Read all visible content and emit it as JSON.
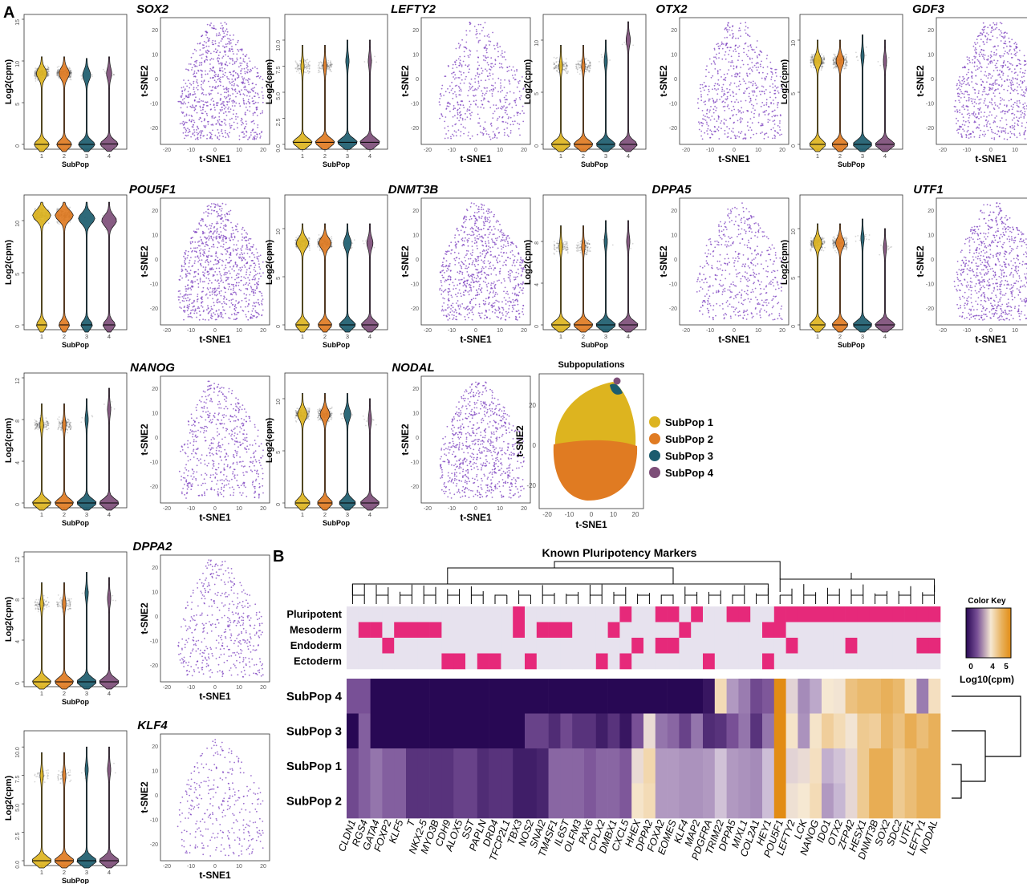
{
  "panel_letters": {
    "a": "A",
    "b": "B"
  },
  "chart_data": [
    {
      "type": "violin+scatter",
      "panel": "A",
      "genes": [
        {
          "name": "SOX2",
          "ylim": [
            0,
            15
          ],
          "yticks": [
            0,
            5,
            10,
            15
          ],
          "yticklabels": [
            "0",
            "5",
            "10",
            "15"
          ],
          "zero": [
            0,
            0,
            0,
            0.05
          ],
          "high": [
            8.5,
            8.5,
            8.3,
            8.5
          ],
          "zeroFrac": [
            0.45,
            0.45,
            0.6,
            0.75
          ],
          "dots": 0.9
        },
        {
          "name": "LEFTY2",
          "ylim": [
            0,
            12
          ],
          "yticks": [
            0,
            2.5,
            5,
            7.5,
            10
          ],
          "yticklabels": [
            "0.0",
            "2.5",
            "5.0",
            "7.5",
            "10.0"
          ],
          "zero": [
            0.2,
            0.2,
            0.2,
            0.2
          ],
          "high": [
            7.5,
            7.5,
            8,
            8
          ],
          "zeroFrac": [
            0.92,
            0.92,
            0.97,
            0.97
          ],
          "dots": 0.4
        },
        {
          "name": "OTX2",
          "ylim": [
            0,
            12
          ],
          "yticks": [
            0,
            5,
            10
          ],
          "yticklabels": [
            "0",
            "5",
            "10"
          ],
          "zero": [
            0,
            0,
            0,
            0
          ],
          "high": [
            7.5,
            7.5,
            8,
            10
          ],
          "zeroFrac": [
            0.9,
            0.9,
            0.9,
            0.8
          ],
          "dots": 0.5
        },
        {
          "name": "GDF3",
          "ylim": [
            0,
            12
          ],
          "yticks": [
            0,
            5,
            10
          ],
          "yticklabels": [
            "0",
            "5",
            "10"
          ],
          "zero": [
            0,
            0,
            0,
            0
          ],
          "high": [
            8,
            8,
            8.5,
            8
          ],
          "zeroFrac": [
            0.6,
            0.6,
            0.9,
            0.95
          ],
          "dots": 0.8
        },
        {
          "name": "POU5F1",
          "ylim": [
            0,
            12
          ],
          "yticks": [
            0,
            5,
            10
          ],
          "yticklabels": [
            "0",
            "5",
            "10"
          ],
          "zero": [
            0,
            0,
            0,
            0
          ],
          "high": [
            10.5,
            10.5,
            10.2,
            10
          ],
          "zeroFrac": [
            0.02,
            0.02,
            0.12,
            0.2
          ],
          "dots": 1.0
        },
        {
          "name": "DNMT3B",
          "ylim": [
            0,
            13
          ],
          "yticks": [
            0,
            5,
            10
          ],
          "yticklabels": [
            "0",
            "5",
            "10"
          ],
          "zero": [
            0,
            0,
            0,
            0
          ],
          "high": [
            8.5,
            8.5,
            8.5,
            8.5
          ],
          "zeroFrac": [
            0.35,
            0.35,
            0.6,
            0.7
          ],
          "dots": 0.9
        },
        {
          "name": "DPPA5",
          "ylim": [
            0,
            12
          ],
          "yticks": [
            0,
            4,
            8
          ],
          "yticklabels": [
            "0",
            "4",
            "8"
          ],
          "zero": [
            0,
            0,
            0,
            0
          ],
          "high": [
            7.5,
            7.5,
            8,
            8
          ],
          "zeroFrac": [
            0.9,
            0.9,
            0.97,
            0.97
          ],
          "dots": 0.4
        },
        {
          "name": "UTF1",
          "ylim": [
            0,
            13
          ],
          "yticks": [
            0,
            5,
            10
          ],
          "yticklabels": [
            "0",
            "5",
            "10"
          ],
          "zero": [
            0,
            0,
            0,
            0
          ],
          "high": [
            8.5,
            8.5,
            9,
            8
          ],
          "zeroFrac": [
            0.55,
            0.55,
            0.9,
            0.97
          ],
          "dots": 0.85
        },
        {
          "name": "NANOG",
          "ylim": [
            0,
            12
          ],
          "yticks": [
            0,
            4,
            8,
            12
          ],
          "yticklabels": [
            "0",
            "4",
            "8",
            "12"
          ],
          "zero": [
            0,
            0,
            0,
            0
          ],
          "high": [
            7.5,
            7.5,
            8,
            9
          ],
          "zeroFrac": [
            0.85,
            0.85,
            0.95,
            0.95
          ],
          "dots": 0.5
        },
        {
          "name": "NODAL",
          "ylim": [
            0,
            12
          ],
          "yticks": [
            0,
            5,
            10
          ],
          "yticklabels": [
            "0",
            "5",
            "10"
          ],
          "zero": [
            0,
            0,
            0,
            0
          ],
          "high": [
            8.5,
            8.5,
            8.5,
            8
          ],
          "zeroFrac": [
            0.5,
            0.5,
            0.65,
            0.9
          ],
          "dots": 0.8
        },
        {
          "name": "DPPA2",
          "ylim": [
            0,
            12
          ],
          "yticks": [
            0,
            4,
            8,
            12
          ],
          "yticklabels": [
            "0",
            "4",
            "8",
            "12"
          ],
          "zero": [
            0,
            0,
            0,
            0
          ],
          "high": [
            7.5,
            7.5,
            8.5,
            8
          ],
          "zeroFrac": [
            0.85,
            0.85,
            0.95,
            0.97
          ],
          "dots": 0.35
        },
        {
          "name": "KLF4",
          "ylim": [
            0,
            11
          ],
          "yticks": [
            0,
            2.5,
            5,
            7.5,
            10
          ],
          "yticklabels": [
            "0.0",
            "2.5",
            "5.0",
            "7.5",
            "10.0"
          ],
          "zero": [
            0,
            0,
            0,
            0
          ],
          "high": [
            7.5,
            7.5,
            8,
            8
          ],
          "zeroFrac": [
            0.95,
            0.95,
            0.98,
            0.98
          ],
          "dots": 0.15
        }
      ],
      "violin_xlabel": "SubPop",
      "violin_ylabel": "Log2(cpm)",
      "violin_categories": [
        "1",
        "2",
        "3",
        "4"
      ],
      "tsne_xlabel": "t-SNE1",
      "tsne_ylabel": "t-SNE2",
      "tsne_xticks": [
        "-20",
        "-10",
        "0",
        "10",
        "20"
      ],
      "tsne_yticks": [
        "20",
        "10",
        "0",
        "-10",
        "-20"
      ]
    },
    {
      "type": "scatter",
      "title": "Subpopulations",
      "xlabel": "t-SNE1",
      "ylabel": "t-SNE2",
      "xticks": [
        "-20",
        "-10",
        "0",
        "10",
        "20"
      ],
      "yticks": [
        "20",
        "0",
        "-20"
      ],
      "legend": [
        "SubPop 1",
        "SubPop 2",
        "SubPop 3",
        "SubPop 4"
      ],
      "colors": [
        "#DDB41F",
        "#E07B22",
        "#1C5C6E",
        "#7D4E78"
      ]
    },
    {
      "type": "heatmap",
      "panel": "B",
      "title": "Known Pluripotency Markers",
      "genes": [
        "CLDN1",
        "RGS4",
        "GATA4",
        "FOXP2",
        "KLF5",
        "T",
        "NKX2-5",
        "MYO3B",
        "CDH9",
        "ALOX5",
        "SST",
        "PAPLN",
        "DRD4",
        "TFCP2L1",
        "TBX3",
        "NOS2",
        "SNAI2",
        "TM4SF1",
        "IL6ST",
        "OLFM3",
        "PAX6",
        "CPLX2",
        "DMBX1",
        "CXCL5",
        "HHEX",
        "DPPA2",
        "FOXA2",
        "EOMES",
        "KLF4",
        "MAP2",
        "PDGFRA",
        "TRIM22",
        "DPPA5",
        "MIXL1",
        "COL2A1",
        "HEY1",
        "POU5F1",
        "LEFTY2",
        "LCK",
        "NANOG",
        "IDO1",
        "OTX2",
        "ZFP42",
        "HESX1",
        "DNMT3B",
        "SOX2",
        "SDC2",
        "UTF1",
        "LEFTY1",
        "NODAL"
      ],
      "annotation_rows": [
        "Pluripotent",
        "Mesoderm",
        "Endoderm",
        "Ectoderm"
      ],
      "annotation": {
        "Pluripotent": [
          0,
          0,
          0,
          0,
          0,
          0,
          0,
          0,
          0,
          0,
          0,
          0,
          0,
          0,
          1,
          0,
          0,
          0,
          0,
          0,
          0,
          0,
          0,
          1,
          0,
          0,
          1,
          1,
          0,
          1,
          0,
          0,
          1,
          1,
          0,
          0,
          1,
          1,
          1,
          1,
          1,
          1,
          1,
          1,
          1,
          1,
          1,
          1,
          1,
          1
        ],
        "Mesoderm": [
          0,
          1,
          1,
          0,
          1,
          1,
          1,
          1,
          0,
          0,
          0,
          0,
          0,
          0,
          1,
          0,
          1,
          1,
          1,
          0,
          0,
          0,
          1,
          0,
          0,
          0,
          0,
          0,
          1,
          0,
          0,
          0,
          0,
          0,
          0,
          1,
          1,
          0,
          0,
          0,
          0,
          0,
          0,
          0,
          0,
          0,
          0,
          0,
          0,
          0
        ],
        "Endoderm": [
          0,
          0,
          0,
          1,
          0,
          0,
          0,
          0,
          0,
          0,
          0,
          0,
          0,
          0,
          0,
          0,
          0,
          0,
          0,
          0,
          0,
          0,
          0,
          0,
          1,
          0,
          1,
          1,
          0,
          0,
          0,
          0,
          0,
          0,
          0,
          0,
          0,
          1,
          0,
          0,
          0,
          0,
          1,
          0,
          0,
          0,
          0,
          0,
          1,
          1
        ],
        "Ectoderm": [
          0,
          0,
          0,
          0,
          0,
          0,
          0,
          0,
          1,
          1,
          0,
          1,
          1,
          0,
          0,
          1,
          0,
          0,
          0,
          0,
          0,
          1,
          0,
          1,
          0,
          0,
          0,
          0,
          0,
          0,
          1,
          0,
          0,
          0,
          0,
          1,
          0,
          0,
          0,
          0,
          0,
          0,
          0,
          0,
          0,
          0,
          0,
          0,
          0,
          0
        ]
      },
      "rows": [
        "SubPop 4",
        "SubPop 3",
        "SubPop 1",
        "SubPop 2"
      ],
      "values_log10cpm": [
        [
          1.0,
          1.0,
          0,
          0,
          0,
          0,
          0,
          0,
          0,
          0,
          0,
          0,
          0,
          0,
          0,
          0,
          0,
          0,
          0,
          0,
          0,
          0,
          0,
          0,
          0,
          0,
          0,
          0,
          0,
          0,
          0.2,
          3.8,
          2.0,
          1.6,
          0.9,
          1.1,
          6.0,
          3.0,
          1.8,
          2.2,
          3.5,
          3.4,
          4.4,
          4.6,
          4.6,
          4.8,
          4.6,
          3.6,
          1.6,
          3.7
        ],
        [
          0,
          1.2,
          0,
          0,
          0,
          0,
          0,
          0,
          0,
          0,
          0,
          0,
          0,
          0,
          0,
          0.8,
          0.8,
          0.5,
          0.9,
          0.6,
          0.6,
          0.3,
          0.6,
          0.2,
          1.0,
          3.2,
          1.5,
          1.3,
          0.8,
          1.5,
          0.5,
          0.6,
          1.0,
          1.5,
          0.6,
          1.5,
          6.0,
          3.6,
          1.9,
          3.6,
          4.1,
          3.8,
          3.4,
          4.2,
          4.1,
          4.7,
          4.4,
          4.9,
          4.5,
          4.8
        ],
        [
          0.9,
          1.2,
          1.5,
          1.2,
          1.2,
          0.6,
          0.6,
          0.6,
          0.6,
          0.8,
          0.8,
          0.5,
          0.6,
          0.6,
          0.3,
          0.3,
          0.4,
          1.3,
          1.3,
          1.3,
          1.1,
          1.3,
          1.3,
          1.1,
          3.2,
          3.9,
          2.0,
          2.0,
          1.9,
          1.9,
          2.0,
          2.6,
          2.0,
          1.9,
          1.8,
          2.5,
          6.0,
          3.0,
          3.2,
          3.7,
          2.3,
          2.6,
          3.1,
          4.2,
          4.9,
          4.9,
          4.2,
          4.5,
          4.8,
          4.8
        ],
        [
          0.9,
          1.2,
          1.5,
          1.2,
          1.2,
          0.6,
          0.6,
          0.6,
          0.6,
          0.8,
          0.8,
          0.5,
          0.6,
          0.6,
          0.3,
          0.3,
          0.4,
          1.3,
          1.3,
          1.3,
          1.1,
          1.3,
          1.3,
          1.1,
          3.6,
          3.8,
          2.0,
          2.0,
          1.9,
          1.9,
          2.0,
          2.6,
          2.0,
          1.9,
          1.8,
          2.5,
          6.0,
          3.3,
          3.5,
          3.8,
          2.0,
          2.4,
          3.1,
          4.2,
          4.9,
          4.9,
          4.2,
          4.5,
          4.8,
          4.8
        ]
      ],
      "color_key": {
        "title": "Color Key",
        "ticks": [
          "0",
          "4",
          "5"
        ],
        "label": "Log10(cpm)"
      }
    }
  ]
}
